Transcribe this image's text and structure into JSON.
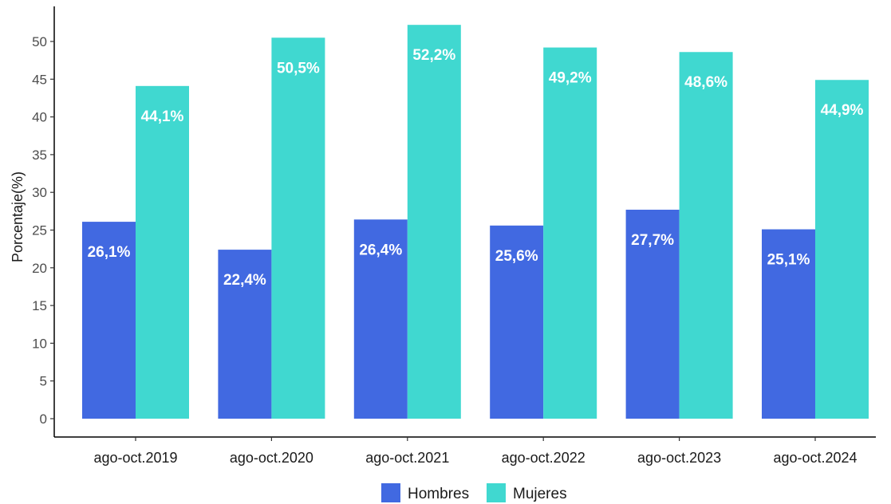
{
  "chart_data": {
    "type": "bar",
    "categories": [
      "ago-oct.2019",
      "ago-oct.2020",
      "ago-oct.2021",
      "ago-oct.2022",
      "ago-oct.2023",
      "ago-oct.2024"
    ],
    "series": [
      {
        "name": "Hombres",
        "color": "#4169E1",
        "values": [
          26.1,
          22.4,
          26.4,
          25.6,
          27.7,
          25.1
        ],
        "labels": [
          "26,1%",
          "22,4%",
          "26,4%",
          "25,6%",
          "27,7%",
          "25,1%"
        ]
      },
      {
        "name": "Mujeres",
        "color": "#40D8D0",
        "values": [
          44.1,
          50.5,
          52.2,
          49.2,
          48.6,
          44.9
        ],
        "labels": [
          "44,1%",
          "50,5%",
          "52,2%",
          "49,2%",
          "48,6%",
          "44,9%"
        ]
      }
    ],
    "ylabel": "Porcentaje(%)",
    "xlabel": "",
    "ylim": [
      0,
      50
    ],
    "yticks": [
      0,
      5,
      10,
      15,
      20,
      25,
      30,
      35,
      40,
      45,
      50
    ],
    "grid": false,
    "legend_position": "bottom"
  }
}
